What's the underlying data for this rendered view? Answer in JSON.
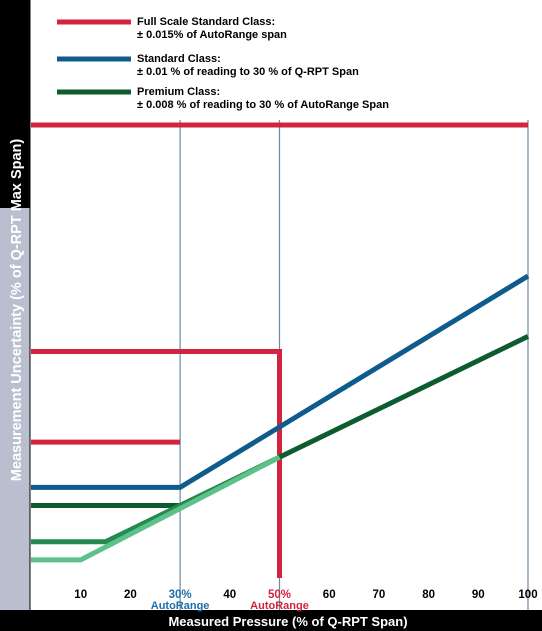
{
  "chart_data": {
    "type": "line",
    "xlabel": "Measured Pressure (% of Q-RPT Span)",
    "ylabel": "Measurement Uncertainty (% of Q-RPT Max Span)",
    "x_ticks": [
      "10",
      "20",
      "30%",
      "40",
      "50%",
      "60",
      "70",
      "80",
      "90",
      "100"
    ],
    "x_tick_values": [
      10,
      20,
      30,
      40,
      50,
      60,
      70,
      80,
      90,
      100
    ],
    "x_tick_sublabels": [
      {
        "x": 30,
        "text": "AutoRange",
        "color": "#1f6ea8"
      },
      {
        "x": 50,
        "text": "AutoRange",
        "color": "#d0243f"
      }
    ],
    "xlim": [
      0,
      100
    ],
    "ylim": [
      0,
      0.018
    ],
    "grid": "vertical guide lines at x = 30, 50, 100",
    "legend": {
      "position": "top",
      "entries": [
        {
          "color": "#d0243f",
          "title": "Full Scale Standard Class:",
          "desc": "± 0.015% of  AutoRange span"
        },
        {
          "color": "#0f5c8c",
          "title": "Standard Class:",
          "desc": "± 0.01 % of reading to 30 % of Q-RPT Span"
        },
        {
          "color": "#0d5c30",
          "title": "Premium Class:",
          "desc": "± 0.008 % of reading to 30 % of AutoRange Span"
        }
      ]
    },
    "series": [
      {
        "color": "#d0243f",
        "points": [
          [
            0,
            0.015
          ],
          [
            100,
            0.015
          ]
        ]
      },
      {
        "color": "#d0243f",
        "points": [
          [
            0,
            0.0075
          ],
          [
            50,
            0.0075
          ],
          [
            50,
            0
          ]
        ]
      },
      {
        "color": "#d0243f",
        "points": [
          [
            0,
            0.0045
          ],
          [
            30,
            0.0045
          ]
        ]
      },
      {
        "color": "#0f5c8c",
        "points": [
          [
            0,
            0.003
          ],
          [
            30,
            0.003
          ],
          [
            100,
            0.01
          ]
        ]
      },
      {
        "color": "#0d5c30",
        "points": [
          [
            0,
            0.0024
          ],
          [
            30,
            0.0024
          ],
          [
            100,
            0.008
          ]
        ]
      },
      {
        "color": "#248a50",
        "points": [
          [
            0,
            0.0012
          ],
          [
            15,
            0.0012
          ],
          [
            50,
            0.004
          ]
        ]
      },
      {
        "color": "#5cc28a",
        "points": [
          [
            0,
            0.0006
          ],
          [
            10,
            0.0006
          ],
          [
            50,
            0.004
          ]
        ]
      }
    ]
  }
}
